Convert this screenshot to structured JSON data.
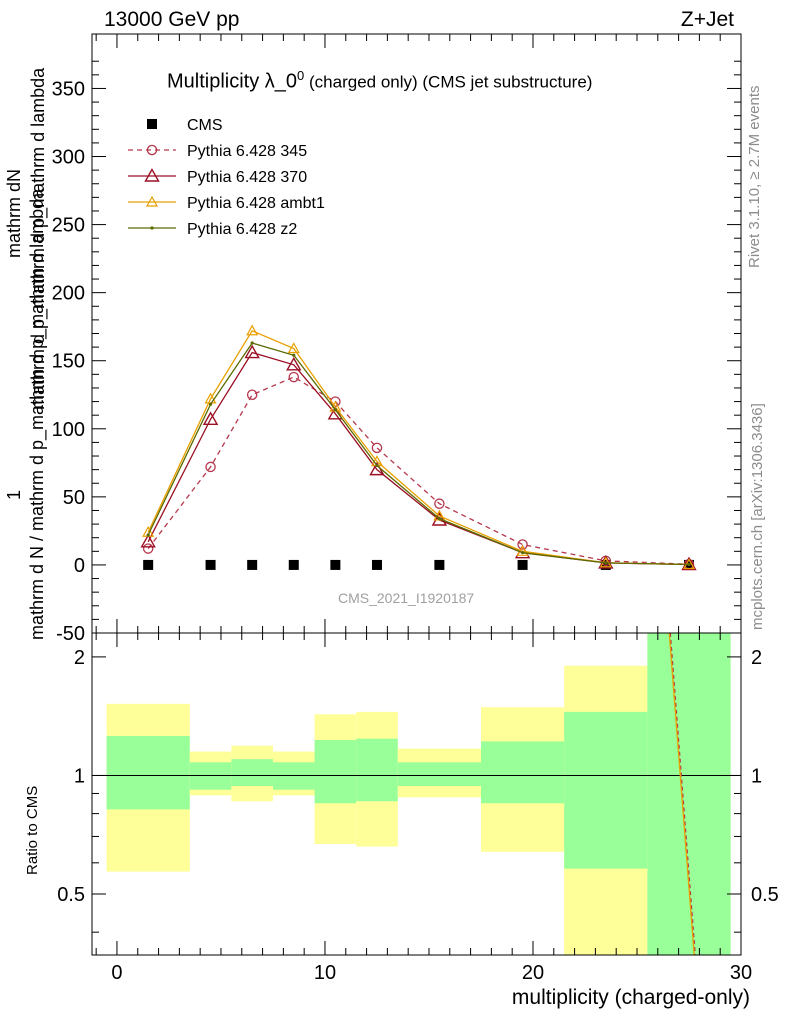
{
  "header": {
    "left": "13000 GeV pp",
    "right": "Z+Jet"
  },
  "side": {
    "rivet": "Rivet 3.1.10, ≥ 2.7M events",
    "mcplots": "mcplots.cern.ch [arXiv:1306.3436]"
  },
  "title": {
    "main": "Multiplicity λ_0",
    "sup": "0",
    "suffix": " (charged only) (CMS jet substructure)"
  },
  "watermark": "CMS_2021_I1920187",
  "ylabel": {
    "numerator": "mathrm dN",
    "one": "1",
    "denominator_part1": "mathrm d N / mathrm d p_mathrm d p_mathrm d lambda",
    "numerator_full": "mathrm d p_mathrm d p_mathrm d lambda"
  },
  "ratio_ylabel": "Ratio to CMS",
  "xlabel": "multiplicity (charged-only)",
  "colors": {
    "cms": "#000000",
    "p345": "#b5374d",
    "p370": "#9a0f24",
    "ambt1": "#e8a000",
    "z2": "#5c6a00",
    "band_inner": "#99ff99",
    "band_outer": "#ffff99"
  },
  "chart_data": [
    {
      "type": "line",
      "x": [
        1.5,
        4.5,
        6.5,
        8.5,
        10.5,
        12.5,
        15.5,
        19.5,
        23.5,
        27.5
      ],
      "xlim": [
        -1.2,
        30
      ],
      "ylim": [
        -50,
        390
      ],
      "yticks": [
        -50,
        0,
        50,
        100,
        150,
        200,
        250,
        300,
        350
      ],
      "xticks": [
        0,
        10,
        20,
        30
      ],
      "legend_position": "top-left",
      "series": [
        {
          "name": "CMS",
          "marker": "square",
          "values": [
            0,
            0,
            0,
            0,
            0,
            0,
            0,
            0,
            0,
            0
          ]
        },
        {
          "name": "Pythia 6.428 345",
          "marker": "circle",
          "dashed": true,
          "values": [
            12,
            72,
            125,
            138,
            120,
            86,
            45,
            15,
            3,
            0.5
          ]
        },
        {
          "name": "Pythia 6.428 370",
          "marker": "triangle",
          "values": [
            17,
            107,
            156,
            147,
            111,
            70,
            33,
            9,
            1.5,
            0.3
          ]
        },
        {
          "name": "Pythia 6.428 ambt1",
          "marker": "triangle-small",
          "values": [
            24,
            122,
            172,
            159,
            116,
            76,
            36,
            10,
            1.6,
            0.3
          ]
        },
        {
          "name": "Pythia 6.428 z2",
          "marker": "dot",
          "values": [
            22,
            118,
            163,
            154,
            114,
            73,
            34,
            9,
            1.5,
            0.3
          ]
        }
      ]
    },
    {
      "type": "area",
      "name": "Ratio to CMS",
      "ylim": [
        0.35,
        2.3
      ],
      "yticks": [
        0.5,
        1,
        2
      ],
      "bins": [
        {
          "lo": -0.5,
          "hi": 3.5,
          "inner": [
            0.82,
            1.26
          ],
          "outer": [
            0.57,
            1.52
          ]
        },
        {
          "lo": 3.5,
          "hi": 5.5,
          "inner": [
            0.92,
            1.08
          ],
          "outer": [
            0.89,
            1.15
          ]
        },
        {
          "lo": 5.5,
          "hi": 7.5,
          "inner": [
            0.94,
            1.1
          ],
          "outer": [
            0.86,
            1.19
          ]
        },
        {
          "lo": 7.5,
          "hi": 9.5,
          "inner": [
            0.92,
            1.08
          ],
          "outer": [
            0.89,
            1.15
          ]
        },
        {
          "lo": 9.5,
          "hi": 11.5,
          "inner": [
            0.85,
            1.23
          ],
          "outer": [
            0.67,
            1.43
          ]
        },
        {
          "lo": 11.5,
          "hi": 13.5,
          "inner": [
            0.86,
            1.24
          ],
          "outer": [
            0.66,
            1.45
          ]
        },
        {
          "lo": 13.5,
          "hi": 17.5,
          "inner": [
            0.94,
            1.08
          ],
          "outer": [
            0.88,
            1.17
          ]
        },
        {
          "lo": 17.5,
          "hi": 21.5,
          "inner": [
            0.85,
            1.22
          ],
          "outer": [
            0.64,
            1.49
          ]
        },
        {
          "lo": 21.5,
          "hi": 25.5,
          "inner": [
            0.58,
            1.45
          ],
          "outer": [
            0.35,
            1.9
          ]
        },
        {
          "lo": 25.5,
          "hi": 29.5,
          "inner": [
            0.35,
            2.3
          ],
          "outer": [
            0.35,
            2.3
          ]
        }
      ],
      "ratio_lines": [
        {
          "name": "Pythia 6.428 345",
          "from": [
            26.6,
            2.3
          ],
          "to": [
            27.8,
            0.35
          ]
        },
        {
          "name": "Pythia 6.428 370",
          "from": [
            26.55,
            2.3
          ],
          "to": [
            27.75,
            0.35
          ]
        }
      ]
    }
  ]
}
